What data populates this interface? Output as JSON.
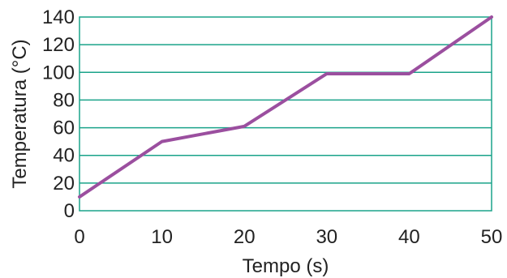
{
  "chart_data": {
    "type": "line",
    "title": "",
    "xlabel": "Tempo (s)",
    "ylabel": "Temperatura (°C)",
    "xlim": [
      0,
      50
    ],
    "ylim": [
      0,
      140
    ],
    "x_ticks": [
      0,
      10,
      20,
      30,
      40,
      50
    ],
    "y_ticks": [
      0,
      20,
      40,
      60,
      80,
      100,
      120,
      140
    ],
    "grid": "horizontal",
    "colors": {
      "line": "#9b4f9f",
      "grid": "#1aa38a",
      "frame": "#1aa38a"
    },
    "series": [
      {
        "x": [
          0,
          10,
          20,
          30,
          40,
          50
        ],
        "y": [
          10,
          50,
          61,
          99,
          99,
          140
        ]
      }
    ]
  }
}
